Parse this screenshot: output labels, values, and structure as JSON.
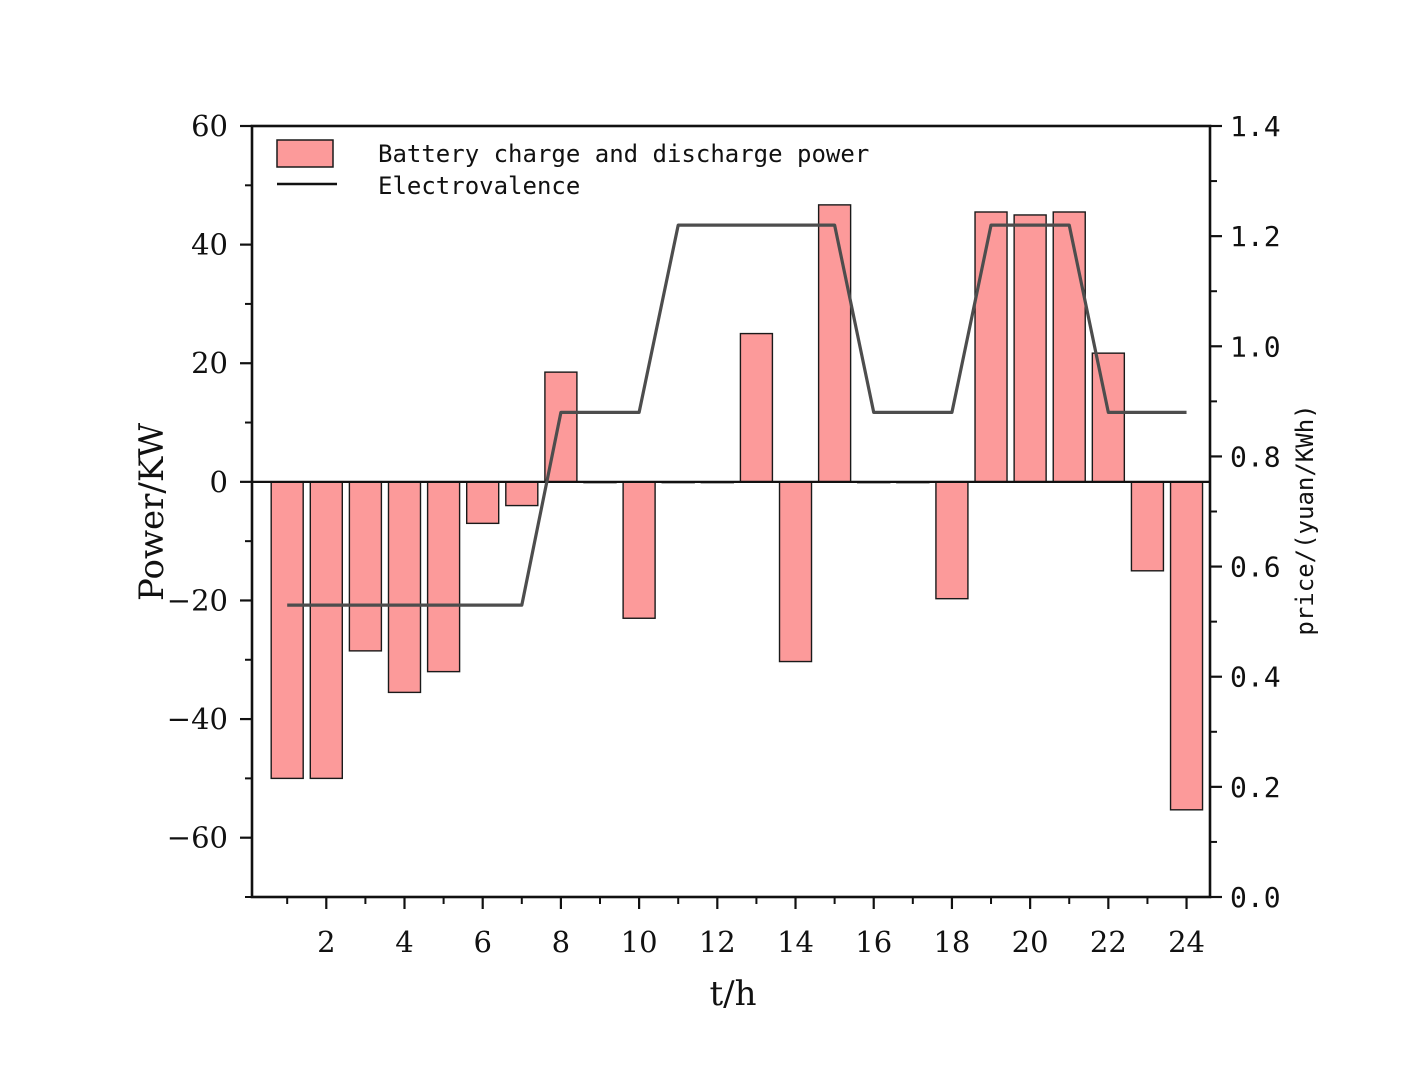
{
  "chart_data": {
    "type": "bar",
    "xlabel": "t/h",
    "ylabel": "Power/KW",
    "y2label": "price/(yuan/KWh)",
    "x": [
      1,
      2,
      3,
      4,
      5,
      6,
      7,
      8,
      9,
      10,
      11,
      12,
      13,
      14,
      15,
      16,
      17,
      18,
      19,
      20,
      21,
      22,
      23,
      24
    ],
    "xlim": [
      0.1,
      24.6
    ],
    "xticks": [
      2,
      4,
      6,
      8,
      10,
      12,
      14,
      16,
      18,
      20,
      22,
      24
    ],
    "ylim": [
      -70,
      60
    ],
    "yticks": [
      -60,
      -40,
      -20,
      0,
      20,
      40,
      60
    ],
    "y2lim": [
      0.0,
      1.4
    ],
    "y2ticks": [
      0.0,
      0.2,
      0.4,
      0.6,
      0.8,
      1.0,
      1.2,
      1.4
    ],
    "legend_position": "top-left",
    "grid": false,
    "colors": {
      "bar_fill": "#fc9a9a",
      "bar_stroke": "#1a1a1a",
      "line": "#4d4d4d",
      "axis": "#111111"
    },
    "series": [
      {
        "name": "Battery charge and discharge power",
        "type": "bar",
        "axis": "left",
        "values": [
          -50,
          -50,
          -28.5,
          -35.5,
          -32,
          -7,
          -4,
          18.5,
          0,
          -23,
          0,
          0,
          25,
          -30.3,
          46.7,
          0,
          0,
          -19.7,
          45.5,
          45,
          45.5,
          21.7,
          -15,
          -55.3
        ]
      },
      {
        "name": "Electrovalence",
        "type": "line",
        "axis": "right",
        "values": [
          0.53,
          0.53,
          0.53,
          0.53,
          0.53,
          0.53,
          0.53,
          0.88,
          0.88,
          0.88,
          1.22,
          1.22,
          1.22,
          1.22,
          1.22,
          0.88,
          0.88,
          0.88,
          1.22,
          1.22,
          1.22,
          0.88,
          0.88,
          0.88
        ]
      }
    ]
  }
}
